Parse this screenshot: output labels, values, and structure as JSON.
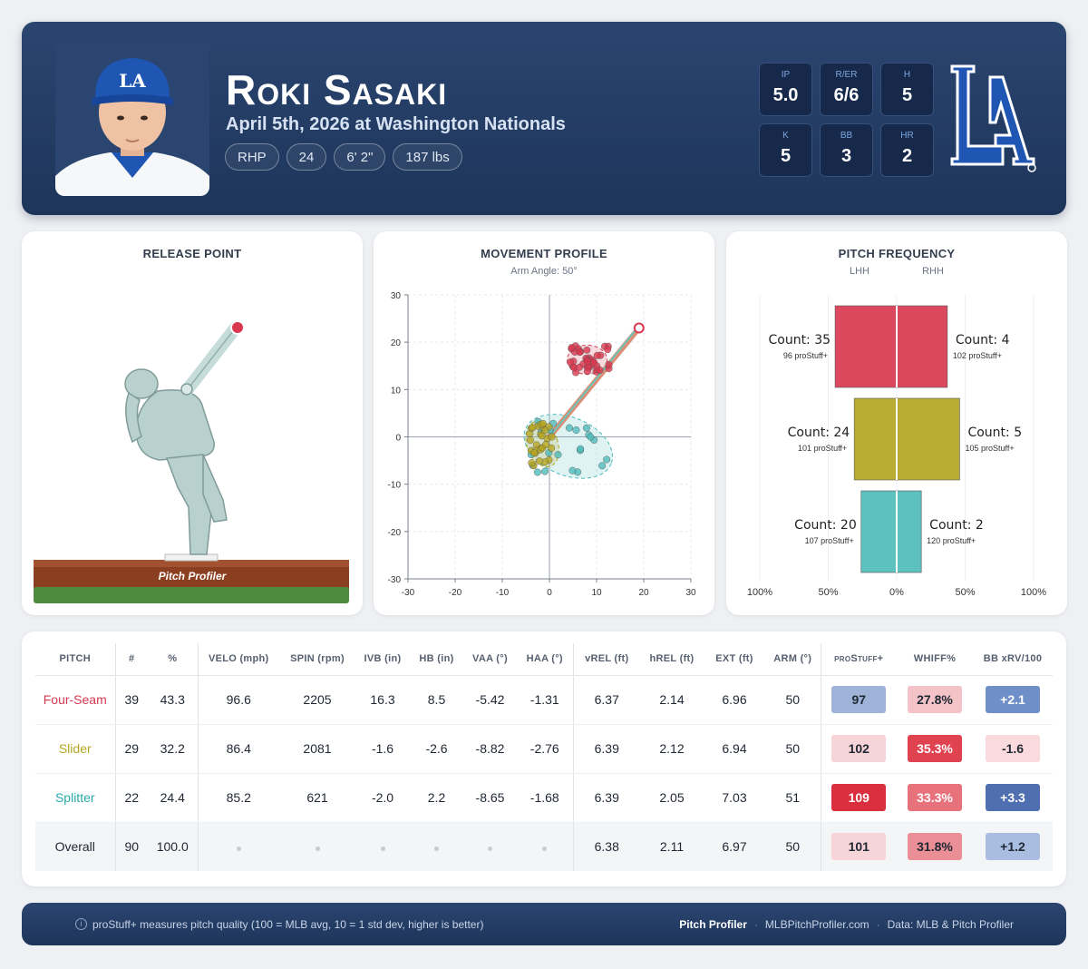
{
  "player": {
    "name": "Roki Sasaki",
    "subtitle": "April 5th, 2026 at Washington Nationals",
    "pills": [
      "RHP",
      "24",
      "6' 2\"",
      "187 lbs"
    ]
  },
  "game_stats": [
    {
      "label": "IP",
      "value": "5.0"
    },
    {
      "label": "R/ER",
      "value": "6/6"
    },
    {
      "label": "H",
      "value": "5"
    },
    {
      "label": "K",
      "value": "5"
    },
    {
      "label": "BB",
      "value": "3"
    },
    {
      "label": "HR",
      "value": "2"
    }
  ],
  "team_logo": "dodgers-la-logo",
  "colors": {
    "four_seam": "#d9384f",
    "slider": "#b5a622",
    "splitter": "#4fbcba",
    "header": "#223b62"
  },
  "release_point": {
    "title": "RELEASE POINT",
    "mound_brand": "Pitch Profiler"
  },
  "movement_profile": {
    "title": "MOVEMENT PROFILE",
    "subtitle": "Arm Angle: 50°",
    "x_ticks": [
      "-30",
      "-20",
      "-10",
      "0",
      "10",
      "20",
      "30"
    ],
    "y_ticks": [
      "30",
      "20",
      "10",
      "0",
      "-10",
      "-20",
      "-30"
    ],
    "xlim": [
      -30,
      30
    ],
    "ylim": [
      -30,
      30
    ],
    "arm_angle_line": {
      "from": [
        0,
        0
      ],
      "to": [
        19,
        23
      ]
    }
  },
  "pitch_frequency": {
    "title": "PITCH FREQUENCY",
    "left_label": "LHH",
    "right_label": "RHH",
    "axis_ticks": [
      "100%",
      "50%",
      "0%",
      "50%",
      "100%"
    ],
    "rows": [
      {
        "pitch": "Four-Seam",
        "color": "#d9384f",
        "lhh_pct": 0.45,
        "rhh_pct": 0.37,
        "lhh_count": "Count: 35",
        "lhh_stuff": "96 proStuff+",
        "rhh_count": "Count: 4",
        "rhh_stuff": "102 proStuff+"
      },
      {
        "pitch": "Slider",
        "color": "#b5a622",
        "lhh_pct": 0.31,
        "rhh_pct": 0.46,
        "lhh_count": "Count: 24",
        "lhh_stuff": "101 proStuff+",
        "rhh_count": "Count: 5",
        "rhh_stuff": "105 proStuff+"
      },
      {
        "pitch": "Splitter",
        "color": "#4fbcba",
        "lhh_pct": 0.26,
        "rhh_pct": 0.18,
        "lhh_count": "Count: 20",
        "lhh_stuff": "107 proStuff+",
        "rhh_count": "Count: 2",
        "rhh_stuff": "120 proStuff+"
      }
    ]
  },
  "table": {
    "headers": [
      "PITCH",
      "#",
      "%",
      "VELO (mph)",
      "SPIN (rpm)",
      "IVB (in)",
      "HB (in)",
      "VAA (°)",
      "HAA (°)",
      "vREL (ft)",
      "hREL (ft)",
      "EXT (ft)",
      "ARM (°)",
      "proStuff+",
      "WHIFF%",
      "BB xRV/100"
    ],
    "rows": [
      {
        "pitch": "Four-Seam",
        "color": "#d9384f",
        "n": "39",
        "pct": "43.3",
        "velo": "96.6",
        "spin": "2205",
        "ivb": "16.3",
        "hb": "8.5",
        "vaa": "-5.42",
        "haa": "-1.31",
        "vrel": "6.37",
        "hrel": "2.14",
        "ext": "6.96",
        "arm": "50",
        "stuff": "97",
        "stuff_bg": "#9fb3d9",
        "whiff": "27.8%",
        "whiff_bg": "#f4c3c8",
        "xrv": "+2.1",
        "xrv_bg": "#6f8fc8",
        "xrv_fg": "#ffffff"
      },
      {
        "pitch": "Slider",
        "color": "#b5a622",
        "n": "29",
        "pct": "32.2",
        "velo": "86.4",
        "spin": "2081",
        "ivb": "-1.6",
        "hb": "-2.6",
        "vaa": "-8.82",
        "haa": "-2.76",
        "vrel": "6.39",
        "hrel": "2.12",
        "ext": "6.94",
        "arm": "50",
        "stuff": "102",
        "stuff_bg": "#f7d4d7",
        "whiff": "35.3%",
        "whiff_bg": "#e0424f",
        "xrv": "-1.6",
        "xrv_bg": "#fadadd",
        "xrv_fg": "#1f2733"
      },
      {
        "pitch": "Splitter",
        "color": "#2aa6a9",
        "n": "22",
        "pct": "24.4",
        "velo": "85.2",
        "spin": "621",
        "ivb": "-2.0",
        "hb": "2.2",
        "vaa": "-8.65",
        "haa": "-1.68",
        "vrel": "6.39",
        "hrel": "2.05",
        "ext": "7.03",
        "arm": "51",
        "stuff": "109",
        "stuff_bg": "#d92f3e",
        "whiff": "33.3%",
        "whiff_bg": "#e8727b",
        "xrv": "+3.3",
        "xrv_bg": "#4f6fb0",
        "xrv_fg": "#ffffff"
      }
    ],
    "overall": {
      "pitch": "Overall",
      "n": "90",
      "pct": "100.0",
      "vrel": "6.38",
      "hrel": "2.11",
      "ext": "6.97",
      "arm": "50",
      "stuff": "101",
      "stuff_bg": "#f7d4d7",
      "whiff": "31.8%",
      "whiff_bg": "#ea8f96",
      "xrv": "+1.2",
      "xrv_bg": "#a9bde0",
      "xrv_fg": "#1f2733"
    }
  },
  "footer": {
    "info_icon": "info-icon",
    "note": "proStuff+ measures pitch quality (100 = MLB avg, 10 = 1 std dev, higher is better)",
    "brand": "Pitch Profiler",
    "site": "MLBPitchProfiler.com",
    "source": "Data: MLB & Pitch Profiler"
  }
}
